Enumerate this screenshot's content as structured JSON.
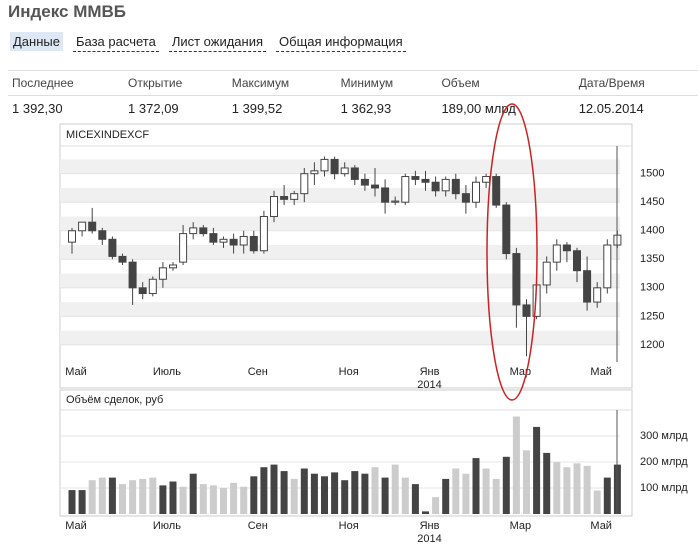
{
  "header": {
    "title": "Индекс ММВБ"
  },
  "tabs": [
    "Данные",
    "База расчета",
    "Лист ожидания",
    "Общая информация"
  ],
  "table": {
    "columns": [
      "Последнее",
      "Открытие",
      "Максимум",
      "Минимум",
      "Объем",
      "Дата/Время"
    ],
    "rows": [
      [
        "1 392,30",
        "1 372,09",
        "1 399,52",
        "1 362,93",
        "189,00 млрд",
        "12.05.2014"
      ]
    ]
  },
  "chart_data": [
    {
      "type": "candlestick",
      "title": "MICEXINDEXCF",
      "categories": [
        "Май",
        null,
        null,
        null,
        null,
        null,
        null,
        null,
        null,
        "Июль",
        null,
        null,
        null,
        null,
        null,
        null,
        null,
        null,
        "Сен",
        null,
        null,
        null,
        null,
        null,
        null,
        null,
        null,
        "Ноя",
        null,
        null,
        null,
        null,
        null,
        null,
        null,
        "Янв 2014",
        null,
        null,
        null,
        null,
        null,
        null,
        null,
        null,
        "Мар",
        null,
        null,
        null,
        null,
        null,
        null,
        null,
        "Май",
        null,
        null
      ],
      "open": [
        1380,
        1400,
        1415,
        1400,
        1385,
        1355,
        1345,
        1300,
        1290,
        1315,
        1335,
        1345,
        1395,
        1405,
        1395,
        1380,
        1385,
        1375,
        1390,
        1365,
        1425,
        1460,
        1455,
        1465,
        1500,
        1505,
        1525,
        1500,
        1510,
        1490,
        1480,
        1475,
        1450,
        1450,
        1495,
        1490,
        1485,
        1470,
        1490,
        1465,
        1450,
        1485,
        1495,
        1445,
        1360,
        1270,
        1250,
        1305,
        1345,
        1375,
        1365,
        1330,
        1275,
        1300,
        1375
      ],
      "high": [
        1405,
        1415,
        1440,
        1405,
        1390,
        1360,
        1350,
        1310,
        1320,
        1345,
        1345,
        1410,
        1415,
        1410,
        1405,
        1390,
        1395,
        1400,
        1400,
        1435,
        1470,
        1480,
        1470,
        1510,
        1520,
        1530,
        1530,
        1520,
        1515,
        1500,
        1510,
        1490,
        1460,
        1500,
        1505,
        1505,
        1495,
        1495,
        1500,
        1480,
        1495,
        1500,
        1500,
        1450,
        1370,
        1280,
        1310,
        1355,
        1385,
        1380,
        1370,
        1355,
        1310,
        1385,
        1400
      ],
      "low": [
        1360,
        1390,
        1395,
        1375,
        1350,
        1340,
        1270,
        1280,
        1285,
        1300,
        1330,
        1340,
        1385,
        1390,
        1375,
        1370,
        1360,
        1360,
        1360,
        1360,
        1415,
        1445,
        1445,
        1450,
        1480,
        1495,
        1490,
        1495,
        1480,
        1470,
        1460,
        1430,
        1445,
        1445,
        1480,
        1470,
        1460,
        1460,
        1455,
        1430,
        1440,
        1475,
        1440,
        1350,
        1230,
        1180,
        1245,
        1290,
        1330,
        1345,
        1310,
        1260,
        1265,
        1290,
        1370
      ],
      "close": [
        1400,
        1415,
        1400,
        1385,
        1355,
        1345,
        1300,
        1290,
        1315,
        1335,
        1340,
        1395,
        1405,
        1395,
        1380,
        1385,
        1375,
        1390,
        1365,
        1425,
        1460,
        1455,
        1465,
        1500,
        1505,
        1525,
        1500,
        1510,
        1490,
        1480,
        1475,
        1450,
        1452,
        1495,
        1490,
        1485,
        1470,
        1490,
        1465,
        1450,
        1485,
        1495,
        1445,
        1360,
        1270,
        1250,
        1305,
        1345,
        1375,
        1365,
        1330,
        1275,
        1300,
        1375,
        1392.3
      ],
      "up_color": "#ffffff",
      "down_color": "#444444",
      "ylim": [
        1170,
        1545
      ],
      "yticks": [
        1200,
        1250,
        1300,
        1350,
        1400,
        1450,
        1500
      ]
    },
    {
      "type": "bar",
      "title": "Объём сделок, руб",
      "values": [
        92,
        92,
        130,
        140,
        140,
        115,
        130,
        135,
        140,
        110,
        125,
        105,
        155,
        115,
        110,
        100,
        120,
        105,
        145,
        180,
        190,
        165,
        135,
        175,
        155,
        145,
        160,
        130,
        165,
        155,
        180,
        140,
        190,
        140,
        115,
        10,
        65,
        135,
        175,
        155,
        215,
        175,
        135,
        220,
        375,
        245,
        335,
        235,
        200,
        180,
        195,
        185,
        90,
        140,
        190
      ],
      "colors": [
        "#444444",
        "#444444",
        "#cccccc",
        "#cccccc",
        "#444444",
        "#cccccc",
        "#cccccc",
        "#cccccc",
        "#cccccc",
        "#444444",
        "#444444",
        "#cccccc",
        "#444444",
        "#cccccc",
        "#cccccc",
        "#cccccc",
        "#cccccc",
        "#cccccc",
        "#444444",
        "#444444",
        "#444444",
        "#444444",
        "#cccccc",
        "#444444",
        "#444444",
        "#444444",
        "#444444",
        "#444444",
        "#444444",
        "#444444",
        "#cccccc",
        "#444444",
        "#cccccc",
        "#cccccc",
        "#444444",
        "#444444",
        "#cccccc",
        "#444444",
        "#cccccc",
        "#cccccc",
        "#444444",
        "#cccccc",
        "#cccccc",
        "#444444",
        "#cccccc",
        "#cccccc",
        "#444444",
        "#444444",
        "#cccccc",
        "#cccccc",
        "#cccccc",
        "#cccccc",
        "#cccccc",
        "#444444",
        "#444444"
      ],
      "ylim": [
        0,
        400
      ],
      "yticks": [
        {
          "value": 100,
          "label": "100 млрд"
        },
        {
          "value": 200,
          "label": "200 млрд"
        },
        {
          "value": 300,
          "label": "300 млрд"
        }
      ]
    }
  ]
}
